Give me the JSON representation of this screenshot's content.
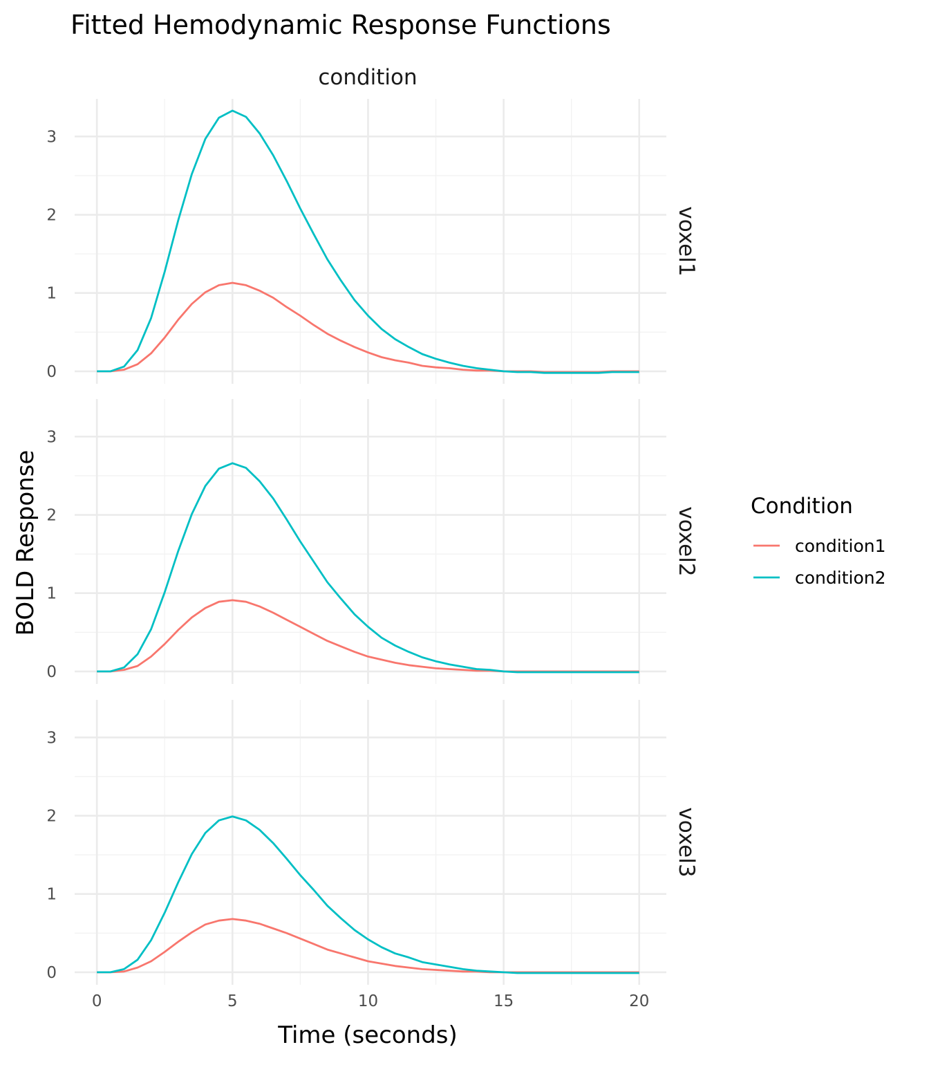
{
  "chart_data": {
    "type": "line",
    "title": "Fitted Hemodynamic Response Functions",
    "xlabel": "Time (seconds)",
    "ylabel": "BOLD Response",
    "column_strip": "condition",
    "facets": [
      "voxel1",
      "voxel2",
      "voxel3"
    ],
    "xlim": [
      -1,
      21
    ],
    "ylim": [
      -0.16,
      3.48
    ],
    "x_ticks": [
      0,
      5,
      10,
      15,
      20
    ],
    "y_ticks": [
      0,
      1,
      2,
      3
    ],
    "grid": true,
    "legend": {
      "title": "Condition",
      "position": "right",
      "entries": [
        "condition1",
        "condition2"
      ]
    },
    "colors": {
      "condition1": "#F8766D",
      "condition2": "#00BFC4"
    },
    "x": [
      0,
      0.5,
      1,
      1.5,
      2,
      2.5,
      3,
      3.5,
      4,
      4.5,
      5,
      5.5,
      6,
      6.5,
      7,
      7.5,
      8,
      8.5,
      9,
      9.5,
      10,
      10.5,
      11,
      11.5,
      12,
      12.5,
      13,
      13.5,
      14,
      14.5,
      15,
      15.5,
      16,
      16.5,
      17,
      17.5,
      18,
      18.5,
      19,
      19.5,
      20
    ],
    "panels": [
      {
        "facet": "voxel1",
        "series": [
          {
            "name": "condition1",
            "values": [
              0,
              0,
              0.02,
              0.09,
              0.23,
              0.43,
              0.66,
              0.86,
              1.01,
              1.1,
              1.13,
              1.1,
              1.03,
              0.94,
              0.82,
              0.71,
              0.59,
              0.48,
              0.39,
              0.31,
              0.24,
              0.18,
              0.14,
              0.11,
              0.07,
              0.05,
              0.04,
              0.02,
              0.01,
              0.01,
              0,
              0,
              0,
              -0.01,
              -0.01,
              -0.01,
              -0.01,
              -0.01,
              0,
              0,
              0
            ]
          },
          {
            "name": "condition2",
            "values": [
              0,
              0,
              0.06,
              0.27,
              0.68,
              1.27,
              1.93,
              2.52,
              2.97,
              3.24,
              3.33,
              3.25,
              3.04,
              2.76,
              2.43,
              2.08,
              1.75,
              1.43,
              1.16,
              0.91,
              0.71,
              0.54,
              0.41,
              0.31,
              0.22,
              0.16,
              0.11,
              0.07,
              0.04,
              0.02,
              0,
              -0.01,
              -0.01,
              -0.02,
              -0.02,
              -0.02,
              -0.02,
              -0.02,
              -0.01,
              -0.01,
              -0.01
            ]
          }
        ]
      },
      {
        "facet": "voxel2",
        "series": [
          {
            "name": "condition1",
            "values": [
              0,
              0,
              0.02,
              0.07,
              0.19,
              0.35,
              0.53,
              0.69,
              0.81,
              0.89,
              0.91,
              0.89,
              0.83,
              0.75,
              0.66,
              0.57,
              0.48,
              0.39,
              0.32,
              0.25,
              0.19,
              0.15,
              0.11,
              0.08,
              0.06,
              0.04,
              0.03,
              0.02,
              0.01,
              0.01,
              0,
              0,
              0,
              0,
              0,
              0,
              0,
              0,
              0,
              0,
              0
            ]
          },
          {
            "name": "condition2",
            "values": [
              0,
              0,
              0.05,
              0.22,
              0.54,
              1.01,
              1.54,
              2.01,
              2.37,
              2.59,
              2.66,
              2.6,
              2.43,
              2.21,
              1.94,
              1.66,
              1.4,
              1.14,
              0.93,
              0.73,
              0.57,
              0.43,
              0.33,
              0.25,
              0.18,
              0.13,
              0.09,
              0.06,
              0.03,
              0.02,
              0,
              -0.01,
              -0.01,
              -0.01,
              -0.01,
              -0.01,
              -0.01,
              -0.01,
              -0.01,
              -0.01,
              -0.01
            ]
          }
        ]
      },
      {
        "facet": "voxel3",
        "series": [
          {
            "name": "condition1",
            "values": [
              0,
              0,
              0.01,
              0.06,
              0.14,
              0.26,
              0.39,
              0.51,
              0.61,
              0.66,
              0.68,
              0.66,
              0.62,
              0.56,
              0.5,
              0.43,
              0.36,
              0.29,
              0.24,
              0.19,
              0.14,
              0.11,
              0.08,
              0.06,
              0.04,
              0.03,
              0.02,
              0.01,
              0.01,
              0,
              0,
              0,
              0,
              0,
              0,
              0,
              0,
              0,
              0,
              0,
              0
            ]
          },
          {
            "name": "condition2",
            "values": [
              0,
              0,
              0.04,
              0.16,
              0.41,
              0.76,
              1.15,
              1.51,
              1.78,
              1.94,
              1.99,
              1.94,
              1.82,
              1.65,
              1.45,
              1.24,
              1.05,
              0.85,
              0.69,
              0.54,
              0.42,
              0.32,
              0.24,
              0.19,
              0.13,
              0.1,
              0.07,
              0.04,
              0.02,
              0.01,
              0,
              -0.01,
              -0.01,
              -0.01,
              -0.01,
              -0.01,
              -0.01,
              -0.01,
              -0.01,
              -0.01,
              -0.01
            ]
          }
        ]
      }
    ]
  }
}
